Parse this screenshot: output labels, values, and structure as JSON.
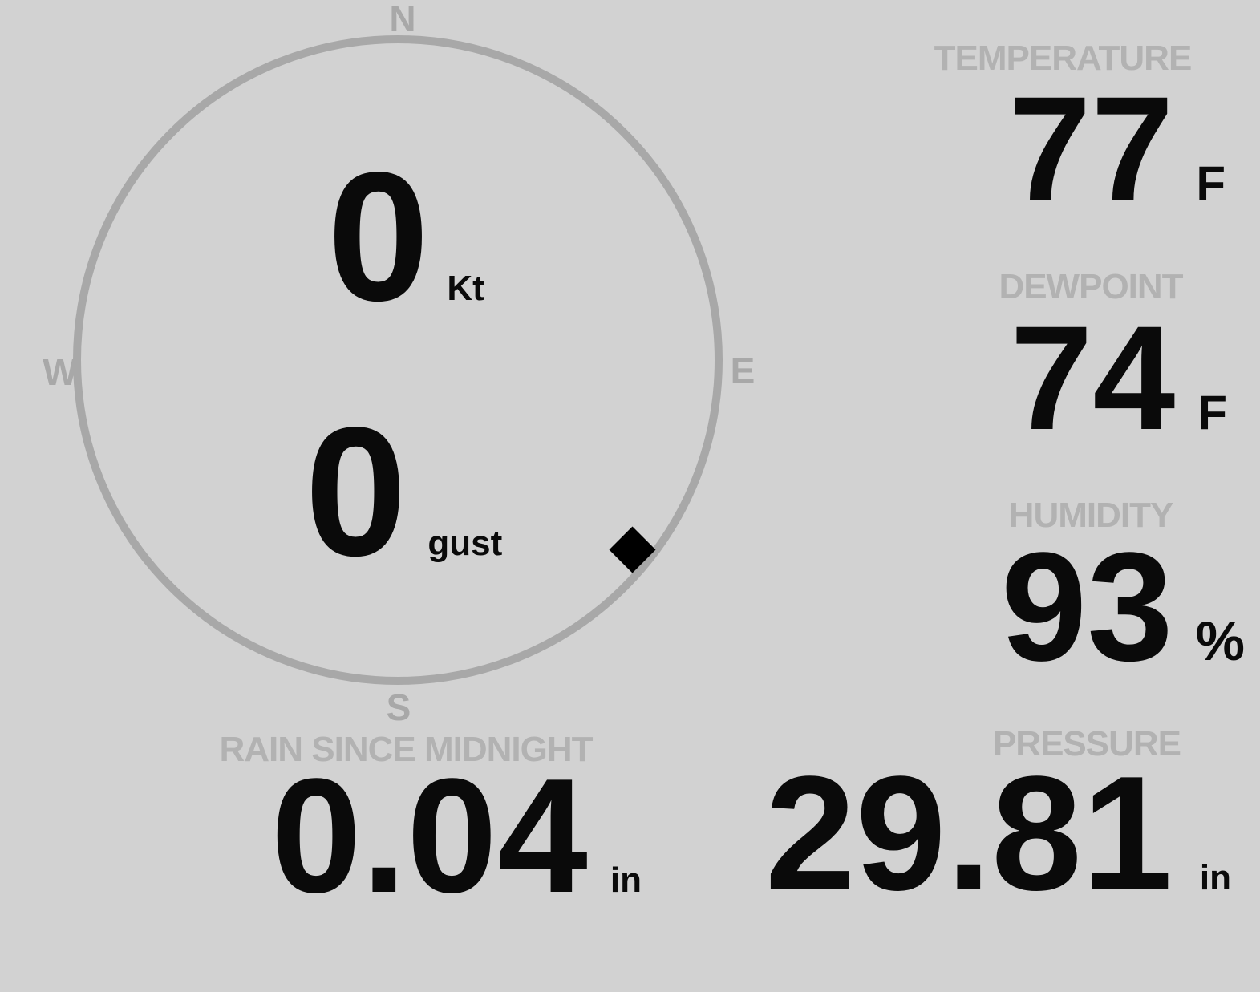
{
  "colors": {
    "background": "#d2d2d2",
    "compass": "#a8a8a8",
    "label": "#b2b2b2",
    "value": "#0a0a0a"
  },
  "compass": {
    "north": "N",
    "east": "E",
    "south": "S",
    "west": "W"
  },
  "wind": {
    "speed_value": "0",
    "speed_unit": "Kt",
    "gust_value": "0",
    "gust_unit": "gust",
    "direction_deg": 129
  },
  "metrics": {
    "temperature": {
      "label": "TEMPERATURE",
      "value": "77",
      "unit": "F"
    },
    "dewpoint": {
      "label": "DEWPOINT",
      "value": "74",
      "unit": "F"
    },
    "humidity": {
      "label": "HUMIDITY",
      "value": "93",
      "unit": "%"
    },
    "rain_since_midnight": {
      "label": "RAIN SINCE MIDNIGHT",
      "value": "0.04",
      "unit": "in"
    },
    "pressure": {
      "label": "PRESSURE",
      "value": "29.81",
      "unit": "in"
    }
  }
}
